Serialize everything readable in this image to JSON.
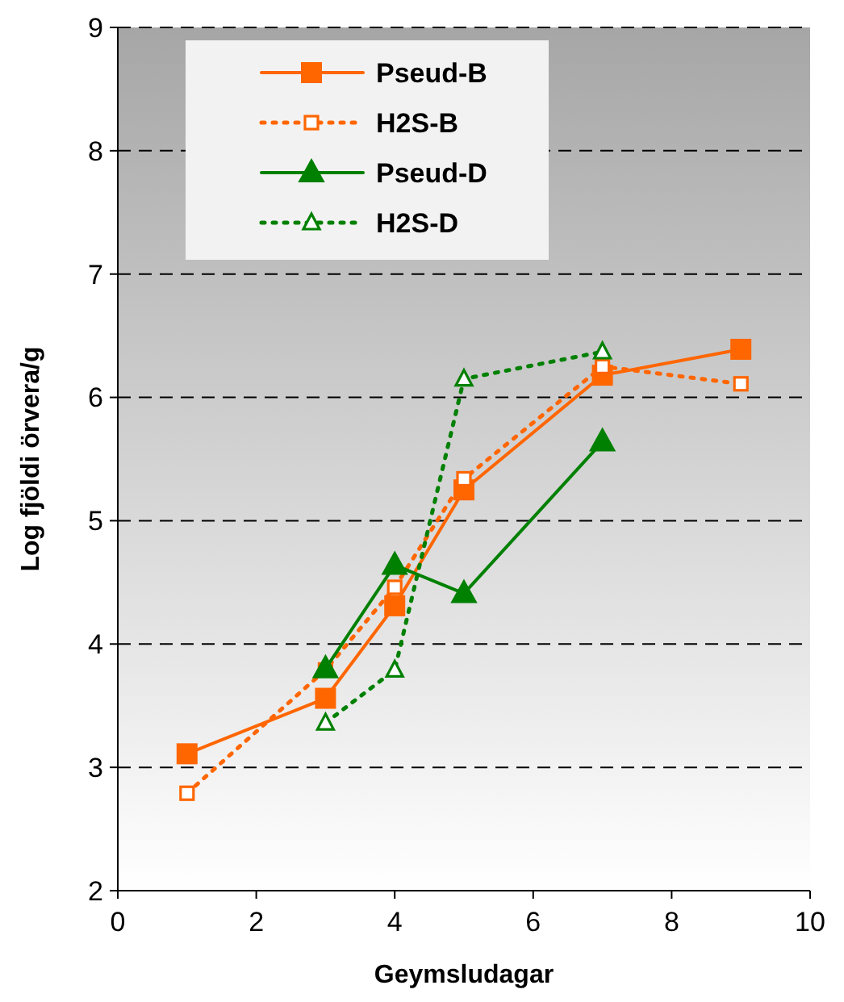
{
  "chart_data": {
    "type": "line",
    "xlabel": "Geymsludagar",
    "ylabel": "Log fjöldi örvera/g",
    "xlim": [
      0,
      10
    ],
    "xticks": [
      0,
      2,
      4,
      6,
      8,
      10
    ],
    "ylim": [
      2,
      9
    ],
    "yticks": [
      2,
      3,
      4,
      5,
      6,
      7,
      8,
      9
    ],
    "grid": "y",
    "legend": "top left",
    "series": [
      {
        "name": "Pseud-B",
        "color": "#ff6600",
        "marker": "square",
        "line_style": "solid",
        "x": [
          1,
          3,
          4,
          5,
          7,
          9
        ],
        "values": [
          3.11,
          3.56,
          4.31,
          5.25,
          6.18,
          6.39
        ]
      },
      {
        "name": "H2S-B",
        "color": "#ff6600",
        "marker": "square",
        "line_style": "dotted",
        "x": [
          1,
          3,
          4,
          5,
          7,
          9
        ],
        "values": [
          2.79,
          3.79,
          4.46,
          5.34,
          6.25,
          6.11
        ]
      },
      {
        "name": "Pseud-D",
        "color": "#008000",
        "marker": "triangle",
        "line_style": "solid",
        "x": [
          3,
          4,
          5,
          7
        ],
        "values": [
          3.8,
          4.64,
          4.41,
          5.64
        ]
      },
      {
        "name": "H2S-D",
        "color": "#008000",
        "marker": "triangle",
        "line_style": "dotted",
        "x": [
          3,
          4,
          5,
          7
        ],
        "values": [
          3.36,
          3.79,
          6.15,
          6.37
        ]
      }
    ]
  }
}
